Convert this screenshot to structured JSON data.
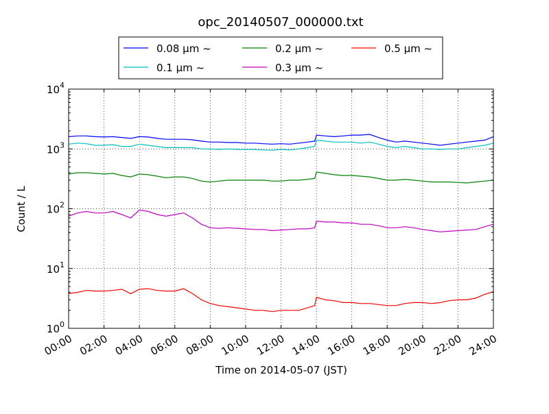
{
  "chart_data": {
    "type": "line",
    "title": "opc_20140507_000000.txt",
    "xlabel": "Time on 2014-05-07 (JST)",
    "ylabel": "Count / L",
    "yscale": "log",
    "ylim": [
      1,
      10000
    ],
    "xlim": [
      0,
      24
    ],
    "grid": true,
    "legend": "top-center-outside",
    "x_ticks": [
      "00:00",
      "02:00",
      "04:00",
      "06:00",
      "08:00",
      "10:00",
      "12:00",
      "14:00",
      "16:00",
      "18:00",
      "20:00",
      "22:00",
      "24:00"
    ],
    "y_ticks": [
      {
        "base": "10",
        "exp": "0"
      },
      {
        "base": "10",
        "exp": "1"
      },
      {
        "base": "10",
        "exp": "2"
      },
      {
        "base": "10",
        "exp": "3"
      },
      {
        "base": "10",
        "exp": "4"
      }
    ],
    "x": [
      0,
      0.5,
      1,
      1.5,
      2,
      2.5,
      3,
      3.5,
      4,
      4.5,
      5,
      5.5,
      6,
      6.5,
      7,
      7.5,
      8,
      8.5,
      9,
      9.5,
      10,
      10.5,
      11,
      11.5,
      12,
      12.5,
      13,
      13.5,
      13.9,
      14,
      14.5,
      15,
      15.5,
      16,
      16.5,
      17,
      17.5,
      18,
      18.5,
      19,
      19.5,
      20,
      20.5,
      21,
      21.5,
      22,
      22.5,
      23,
      23.5,
      24
    ],
    "series": [
      {
        "name": "0.08 μm ~",
        "color": "#0000ff",
        "values": [
          1600,
          1650,
          1650,
          1600,
          1580,
          1600,
          1550,
          1500,
          1600,
          1580,
          1500,
          1450,
          1450,
          1450,
          1420,
          1350,
          1300,
          1300,
          1280,
          1280,
          1250,
          1250,
          1220,
          1200,
          1220,
          1200,
          1250,
          1300,
          1350,
          1700,
          1650,
          1600,
          1650,
          1700,
          1700,
          1750,
          1550,
          1400,
          1300,
          1350,
          1300,
          1250,
          1200,
          1150,
          1200,
          1250,
          1300,
          1350,
          1400,
          1600
        ]
      },
      {
        "name": "0.1 μm ~",
        "color": "#00bfbf",
        "values": [
          1200,
          1250,
          1220,
          1150,
          1150,
          1180,
          1100,
          1100,
          1200,
          1150,
          1100,
          1050,
          1050,
          1050,
          1050,
          1000,
          1000,
          980,
          1000,
          980,
          980,
          980,
          960,
          950,
          980,
          960,
          1000,
          1050,
          1100,
          1400,
          1350,
          1300,
          1300,
          1300,
          1250,
          1300,
          1200,
          1100,
          1050,
          1100,
          1050,
          1000,
          1000,
          980,
          1000,
          1000,
          1050,
          1100,
          1150,
          1250
        ]
      },
      {
        "name": "0.2 μm ~",
        "color": "#008000",
        "values": [
          380,
          400,
          400,
          390,
          380,
          390,
          360,
          340,
          380,
          370,
          350,
          330,
          340,
          340,
          320,
          290,
          280,
          290,
          300,
          300,
          300,
          300,
          300,
          290,
          290,
          300,
          300,
          310,
          320,
          410,
          390,
          370,
          360,
          360,
          350,
          340,
          320,
          300,
          300,
          310,
          300,
          290,
          280,
          280,
          280,
          275,
          270,
          280,
          290,
          300
        ]
      },
      {
        "name": "0.3 μm ~",
        "color": "#bf00bf",
        "values": [
          75,
          85,
          90,
          85,
          85,
          90,
          80,
          70,
          95,
          90,
          80,
          75,
          80,
          85,
          70,
          55,
          48,
          47,
          48,
          47,
          46,
          45,
          45,
          43,
          44,
          45,
          46,
          46,
          48,
          62,
          60,
          60,
          58,
          58,
          55,
          55,
          52,
          48,
          48,
          50,
          48,
          45,
          43,
          41,
          42,
          43,
          44,
          45,
          50,
          55
        ]
      },
      {
        "name": "0.5 μm ~",
        "color": "#ff0000",
        "values": [
          3.8,
          4.0,
          4.3,
          4.2,
          4.2,
          4.3,
          4.5,
          3.8,
          4.5,
          4.6,
          4.3,
          4.2,
          4.2,
          4.6,
          3.8,
          3.0,
          2.6,
          2.4,
          2.3,
          2.2,
          2.1,
          2.0,
          2.0,
          1.9,
          2.0,
          2.0,
          2.0,
          2.2,
          2.4,
          3.3,
          3.0,
          2.9,
          2.7,
          2.7,
          2.6,
          2.6,
          2.5,
          2.4,
          2.4,
          2.6,
          2.7,
          2.7,
          2.6,
          2.7,
          2.9,
          3.0,
          3.0,
          3.2,
          3.7,
          4.1
        ]
      }
    ]
  }
}
